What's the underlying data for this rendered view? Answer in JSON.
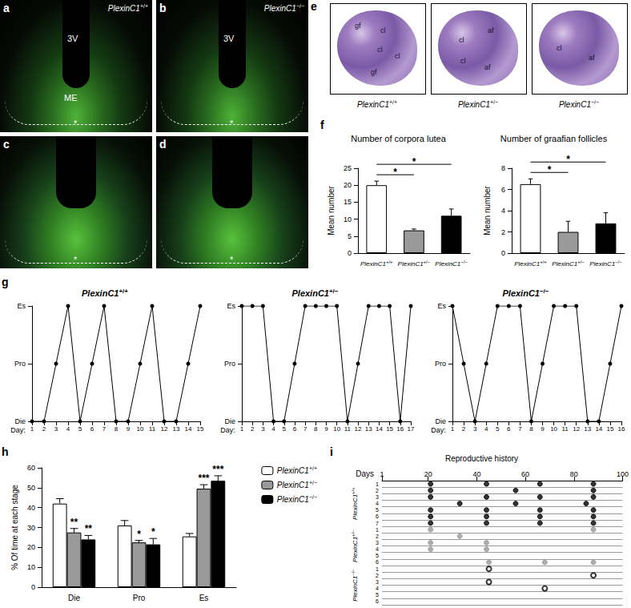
{
  "image_panels": [
    {
      "panel": "a",
      "genotype": "PlexinC1+/+",
      "labels": [
        "3V",
        "ME",
        "*"
      ]
    },
    {
      "panel": "b",
      "genotype": "PlexinC1−/−",
      "labels": [
        "3V",
        "*"
      ]
    },
    {
      "panel": "c",
      "labels": [
        "*"
      ]
    },
    {
      "panel": "d",
      "labels": [
        "*"
      ]
    },
    {
      "panel": "e",
      "images": [
        {
          "genotype": "PlexinC1+/+",
          "labels": [
            "gf",
            "cl",
            "cl",
            "cl",
            "gf"
          ]
        },
        {
          "genotype": "PlexinC1+/−",
          "labels": [
            "af",
            "cl",
            "cl",
            "af"
          ]
        },
        {
          "genotype": "PlexinC1−/−",
          "labels": [
            "cl",
            "af"
          ]
        }
      ]
    }
  ],
  "chart_data": [
    {
      "panel": "f",
      "type": "bar",
      "title": "Number of corpora lutea",
      "ylabel": "Mean number",
      "categories": [
        "PlexinC1+/+",
        "PlexinC1+/−",
        "PlexinC1−/−"
      ],
      "values": [
        20,
        6.7,
        11
      ],
      "errors": [
        1.2,
        0.4,
        2
      ],
      "colors": [
        "#ffffff",
        "#9a9a9a",
        "#000000"
      ],
      "ylim": [
        0,
        25
      ],
      "yticks": [
        0,
        5,
        10,
        15,
        20,
        25
      ],
      "annotations": [
        {
          "from": 0,
          "to": 1,
          "text": "*"
        },
        {
          "from": 0,
          "to": 2,
          "text": "*"
        }
      ]
    },
    {
      "type": "bar",
      "title": "Number of graafian follicles",
      "ylabel": "Mean number",
      "categories": [
        "PlexinC1+/+",
        "PlexinC1+/−",
        "PlexinC1−/−"
      ],
      "values": [
        6.5,
        2,
        2.8
      ],
      "errors": [
        0.5,
        1,
        1
      ],
      "colors": [
        "#ffffff",
        "#9a9a9a",
        "#000000"
      ],
      "ylim": [
        0,
        8
      ],
      "yticks": [
        0,
        2,
        4,
        6,
        8
      ],
      "annotations": [
        {
          "from": 0,
          "to": 1,
          "text": "*"
        },
        {
          "from": 0,
          "to": 2,
          "text": "*"
        }
      ]
    },
    {
      "panel": "g",
      "type": "line",
      "title": "PlexinC1+/+",
      "xlabel": "Day:",
      "x": [
        1,
        2,
        3,
        4,
        5,
        6,
        7,
        8,
        9,
        10,
        11,
        12,
        13,
        14,
        15
      ],
      "values": [
        "Die",
        "Die",
        "Pro",
        "Es",
        "Die",
        "Pro",
        "Es",
        "Die",
        "Die",
        "Pro",
        "Es",
        "Die",
        "Die",
        "Pro",
        "Es"
      ],
      "ycategories": [
        "Die",
        "Pro",
        "Es"
      ],
      "xlim": [
        1,
        15
      ],
      "xticks": [
        1,
        2,
        3,
        4,
        5,
        6,
        7,
        8,
        9,
        10,
        11,
        12,
        13,
        14,
        15
      ],
      "color": "#000000",
      "marker": "circle"
    },
    {
      "type": "line",
      "title": "PlexinC1+/−",
      "xlabel": "Day:",
      "x": [
        1,
        2,
        3,
        4,
        5,
        6,
        7,
        8,
        9,
        10,
        11,
        12,
        13,
        14,
        15,
        16,
        17
      ],
      "values": [
        "Es",
        "Es",
        "Es",
        "Die",
        "Die",
        "Pro",
        "Es",
        "Es",
        "Es",
        "Es",
        "Die",
        "Pro",
        "Es",
        "Es",
        "Es",
        "Die",
        "Es"
      ],
      "ycategories": [
        "Die",
        "Pro",
        "Es"
      ],
      "xlim": [
        1,
        17
      ],
      "xticks": [
        1,
        2,
        3,
        4,
        5,
        6,
        7,
        8,
        9,
        10,
        11,
        12,
        13,
        14,
        15,
        16,
        17
      ],
      "color": "#000000",
      "marker": "circle"
    },
    {
      "type": "line",
      "title": "PlexinC1−/−",
      "xlabel": "Day:",
      "x": [
        1,
        2,
        3,
        4,
        5,
        6,
        7,
        8,
        9,
        10,
        11,
        12,
        13,
        14,
        15,
        16
      ],
      "values": [
        "Es",
        "Pro",
        "Die",
        "Pro",
        "Es",
        "Es",
        "Es",
        "Die",
        "Pro",
        "Es",
        "Es",
        "Es",
        "Die",
        "Die",
        "Pro",
        "Es"
      ],
      "ycategories": [
        "Die",
        "Pro",
        "Es"
      ],
      "xlim": [
        1,
        16
      ],
      "xticks": [
        1,
        2,
        3,
        4,
        5,
        6,
        7,
        8,
        9,
        10,
        11,
        12,
        13,
        14,
        15,
        16
      ],
      "color": "#000000",
      "marker": "circle"
    },
    {
      "panel": "h",
      "type": "bar",
      "ylabel": "% Of time at each stage",
      "categories": [
        "Die",
        "Pro",
        "Es"
      ],
      "series": [
        {
          "name": "PlexinC1+/+",
          "color": "#ffffff",
          "values": [
            42,
            31,
            25.5
          ],
          "errors": [
            2.5,
            2.5,
            1.5
          ]
        },
        {
          "name": "PlexinC1+/−",
          "color": "#9a9a9a",
          "values": [
            27.5,
            22.5,
            49.5
          ],
          "errors": [
            2,
            1,
            2
          ],
          "significance": [
            "**",
            "*",
            "***"
          ]
        },
        {
          "name": "PlexinC1−/−",
          "color": "#000000",
          "values": [
            24,
            21.5,
            53.5
          ],
          "errors": [
            2,
            3,
            2.5
          ],
          "significance": [
            "**",
            "*",
            "***"
          ]
        }
      ],
      "ylim": [
        0,
        60
      ],
      "yticks": [
        0,
        10,
        20,
        30,
        40,
        50,
        60
      ],
      "legend": "right"
    },
    {
      "panel": "i",
      "type": "scatter",
      "title": "Reproductive history",
      "xlabel": "Days",
      "xlim": [
        1,
        100
      ],
      "xticks": [
        1,
        20,
        40,
        60,
        80,
        100
      ],
      "grid": true,
      "groups": [
        {
          "name": "PlexinC1+/+",
          "color": "#000000",
          "marker": "filled",
          "rows": [
            {
              "label": "1",
              "values": [
                21,
                44,
                66,
                88
              ]
            },
            {
              "label": "2",
              "values": [
                21,
                56,
                88
              ]
            },
            {
              "label": "3",
              "values": [
                21,
                44,
                66,
                88
              ]
            },
            {
              "label": "4",
              "values": [
                33,
                56,
                85
              ]
            },
            {
              "label": "5",
              "values": [
                21,
                44,
                66,
                88
              ]
            },
            {
              "label": "6",
              "values": [
                21,
                44,
                66,
                88
              ]
            },
            {
              "label": "7",
              "values": [
                21,
                44,
                66,
                88
              ]
            }
          ]
        },
        {
          "name": "PlexinC1+/−",
          "color": "#999999",
          "marker": "filled",
          "rows": [
            {
              "label": "1",
              "values": [
                21,
                88
              ]
            },
            {
              "label": "2",
              "values": [
                33
              ]
            },
            {
              "label": "3",
              "values": [
                21,
                44
              ]
            },
            {
              "label": "4",
              "values": [
                21,
                44
              ]
            },
            {
              "label": "5",
              "values": []
            },
            {
              "label": "6",
              "values": [
                45,
                68,
                88
              ]
            }
          ]
        },
        {
          "name": "PlexinC1−/−",
          "color": "#000000",
          "marker": "open",
          "rows": [
            {
              "label": "1",
              "values": [
                45
              ]
            },
            {
              "label": "2",
              "values": [
                88
              ]
            },
            {
              "label": "3",
              "values": [
                45
              ]
            },
            {
              "label": "4",
              "values": [
                68
              ]
            },
            {
              "label": "5",
              "values": []
            },
            {
              "label": "6",
              "values": []
            }
          ]
        }
      ]
    }
  ]
}
